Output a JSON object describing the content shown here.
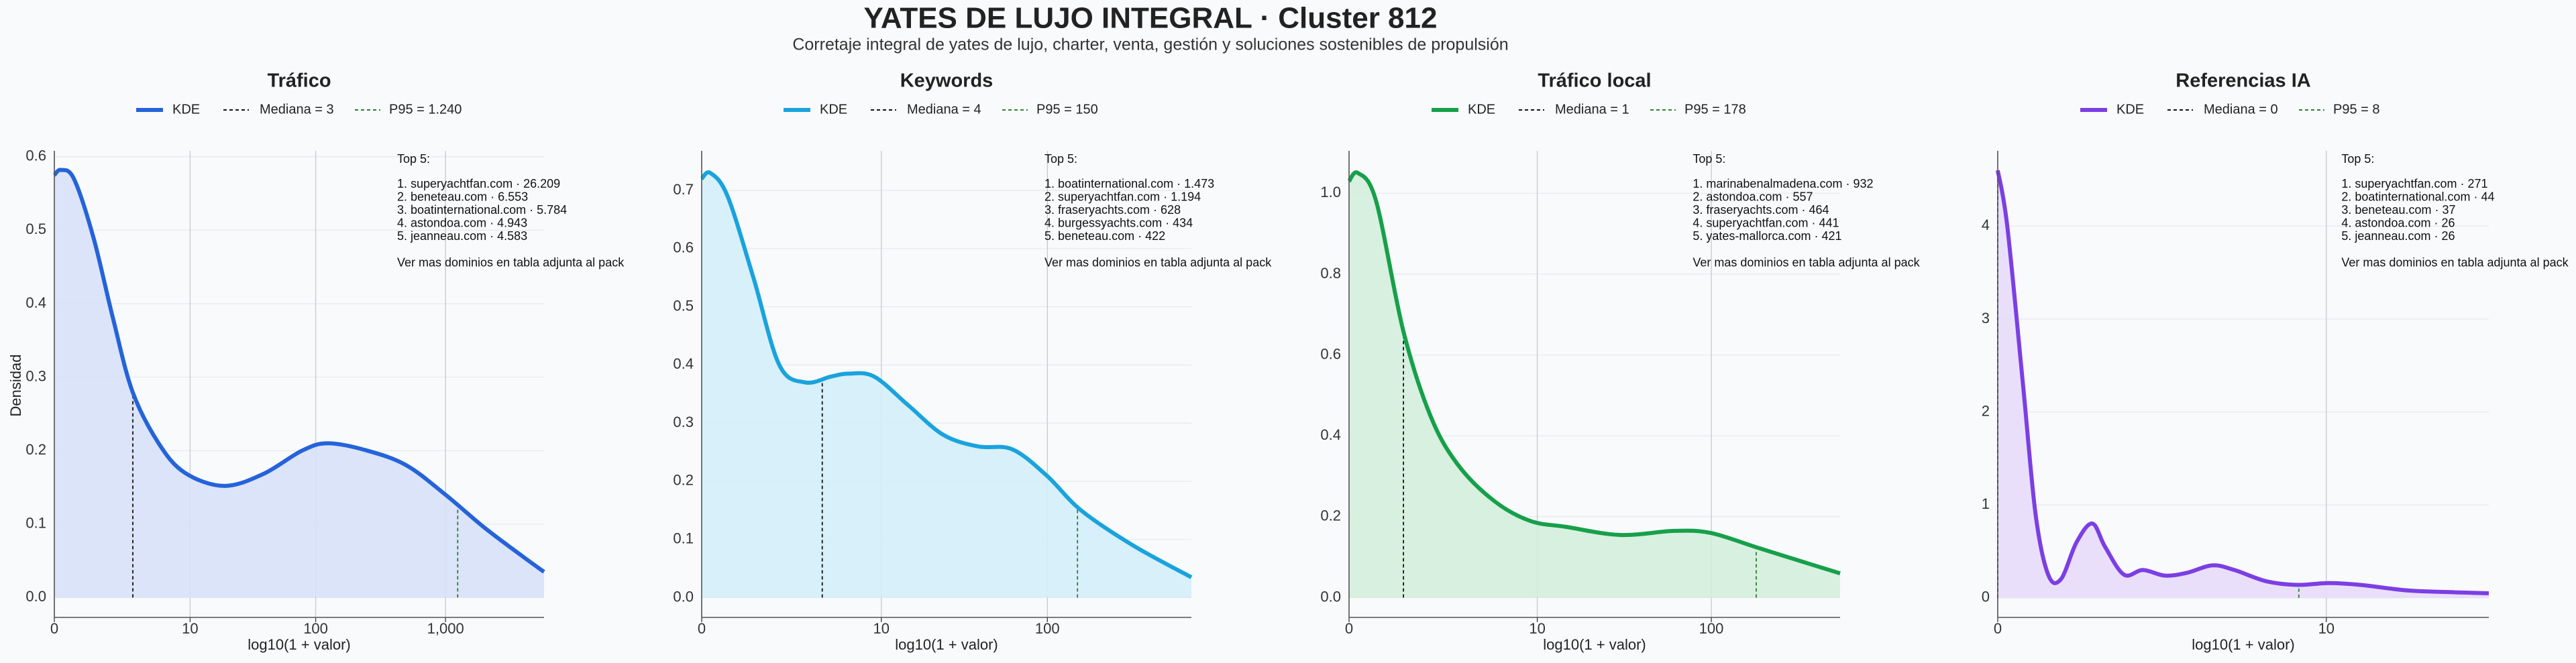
{
  "title": "YATES DE LUJO INTEGRAL · Cluster 812",
  "subtitle": "Corretaje integral de yates de lujo, charter, venta, gestión y soluciones sostenibles de propulsión",
  "chart_data": [
    {
      "type": "area",
      "title": "Tráfico",
      "x_label": "log10(1 + valor)",
      "y_label": "Densidad",
      "xscale": "log1p",
      "grid": true,
      "x": [
        0,
        0.122,
        0.413,
        0.995,
        1.818,
        2.981,
        5.31,
        9,
        18.95,
        38.81,
        78.43,
        124.9,
        250.2,
        500.2,
        999,
        1994,
        3980,
        5700
      ],
      "series": [
        {
          "name": "KDE",
          "color": "#2563d9",
          "fill": "#d7e1f8",
          "values": [
            0.575,
            0.582,
            0.57,
            0.49,
            0.38,
            0.28,
            0.21,
            0.17,
            0.152,
            0.168,
            0.2,
            0.21,
            0.2,
            0.18,
            0.14,
            0.095,
            0.055,
            0.035
          ]
        }
      ],
      "reference_lines": [
        {
          "name": "Mediana = 3",
          "value": 3,
          "color": "#111111"
        },
        {
          "name": "P95 = 1.240",
          "value": 1240,
          "color": "#2e7d32"
        }
      ],
      "xlim": [
        0,
        5700
      ],
      "ylim": [
        -0.027,
        0.608
      ],
      "xticks": [
        0,
        10,
        100,
        {
          "value": 1000,
          "label": "1,000"
        }
      ],
      "yticks": [
        {
          "value": 0,
          "label": "0.0"
        },
        0.1,
        0.2,
        0.3,
        0.4,
        0.5,
        0.6
      ],
      "annotation": [
        "Top 5:",
        "1. superyachtfan.com · 26.209",
        "2. beneteau.com · 6.553",
        "3. boatinternational.com · 5.784",
        "4. astondoa.com · 4.943",
        "5. jeanneau.com · 4.583",
        "Ver mas dominios en tabla adjunta al pack"
      ]
    },
    {
      "type": "area",
      "title": "Keywords",
      "x_label": "log10(1 + valor)",
      "xscale": "log1p",
      "grid": true,
      "x": [
        0,
        0.122,
        0.413,
        0.995,
        1.818,
        2.981,
        4.623,
        6.079,
        9,
        14.85,
        24.12,
        38.81,
        62.1,
        99,
        157.5,
        315.2,
        690
      ],
      "series": [
        {
          "name": "KDE",
          "color": "#1aa3dc",
          "fill": "#d3eefa",
          "values": [
            0.72,
            0.73,
            0.69,
            0.55,
            0.4,
            0.37,
            0.38,
            0.385,
            0.38,
            0.33,
            0.28,
            0.26,
            0.255,
            0.21,
            0.15,
            0.09,
            0.035
          ]
        }
      ],
      "reference_lines": [
        {
          "name": "Mediana = 4",
          "value": 4,
          "color": "#111111"
        },
        {
          "name": "P95 = 150",
          "value": 150,
          "color": "#2e7d32"
        }
      ],
      "xlim": [
        0,
        690
      ],
      "ylim": [
        -0.034,
        0.768
      ],
      "xticks": [
        0,
        10,
        100
      ],
      "yticks": [
        {
          "value": 0,
          "label": "0.0"
        },
        0.1,
        0.2,
        0.3,
        0.4,
        0.5,
        0.6,
        0.7
      ],
      "annotation": [
        "Top 5:",
        "1. boatinternational.com · 1.473",
        "2. superyachtfan.com · 1.194",
        "3. fraseryachts.com · 628",
        "4. burgessyachts.com · 434",
        "5. beneteau.com · 422",
        "Ver mas dominios en tabla adjunta al pack"
      ]
    },
    {
      "type": "area",
      "title": "Tráfico local",
      "x_label": "log10(1 + valor)",
      "xscale": "log1p",
      "grid": true,
      "x": [
        0,
        0.122,
        0.413,
        0.995,
        1.818,
        2.981,
        5.31,
        9,
        14.85,
        30.62,
        62.1,
        99,
        176.8,
        315.2,
        520
      ],
      "series": [
        {
          "name": "KDE",
          "color": "#16a04a",
          "fill": "#d3eedb",
          "values": [
            1.03,
            1.05,
            0.98,
            0.66,
            0.45,
            0.33,
            0.24,
            0.19,
            0.175,
            0.155,
            0.165,
            0.16,
            0.125,
            0.09,
            0.06
          ]
        }
      ],
      "reference_lines": [
        {
          "name": "Mediana = 1",
          "value": 1,
          "color": "#111111"
        },
        {
          "name": "P95 = 178",
          "value": 178,
          "color": "#2e7d32"
        }
      ],
      "xlim": [
        0,
        520
      ],
      "ylim": [
        -0.049,
        1.105
      ],
      "xticks": [
        0,
        10,
        100
      ],
      "yticks": [
        {
          "value": 0,
          "label": "0.0"
        },
        {
          "value": 0.2,
          "label": "0.2"
        },
        {
          "value": 0.4,
          "label": "0.4"
        },
        {
          "value": 0.6,
          "label": "0.6"
        },
        {
          "value": 0.8,
          "label": "0.8"
        },
        {
          "value": 1,
          "label": "1.0"
        }
      ],
      "annotation": [
        "Top 5:",
        "1. marinabenalmadena.com · 932",
        "2. astondoa.com · 557",
        "3. fraseryachts.com · 464",
        "4. superyachtfan.com · 441",
        "5. yates-mallorca.com · 421",
        "Ver mas dominios en tabla adjunta al pack"
      ]
    },
    {
      "type": "area",
      "title": "Referencias IA",
      "x_label": "log10(1 + valor)",
      "xscale": "log1p",
      "grid": true,
      "x": [
        0,
        0.072,
        0.202,
        0.318,
        0.445,
        0.585,
        0.778,
        0.995,
        1.188,
        1.512,
        1.884,
        2.388,
        2.981,
        3.786,
        4.623,
        6.079,
        7.913,
        10.22,
        13.13,
        18.95,
        27.18,
        35
      ],
      "series": [
        {
          "name": "KDE",
          "color": "#7b3fe4",
          "fill": "#e8dcf9",
          "values": [
            4.6,
            4.0,
            2.3,
            0.9,
            0.25,
            0.2,
            0.6,
            0.8,
            0.55,
            0.25,
            0.3,
            0.24,
            0.27,
            0.35,
            0.3,
            0.18,
            0.14,
            0.16,
            0.14,
            0.08,
            0.06,
            0.05
          ]
        }
      ],
      "reference_lines": [
        {
          "name": "Mediana = 0",
          "value": 0,
          "color": "#111111"
        },
        {
          "name": "P95 = 8",
          "value": 8,
          "color": "#2e7d32"
        }
      ],
      "xlim": [
        0,
        35
      ],
      "ylim": [
        -0.21,
        4.81
      ],
      "xticks": [
        0,
        10
      ],
      "yticks": [
        0,
        1,
        2,
        3,
        4
      ],
      "annotation": [
        "Top 5:",
        "1. superyachtfan.com · 271",
        "2. boatinternational.com · 44",
        "3. beneteau.com · 37",
        "4. astondoa.com · 26",
        "5. jeanneau.com · 26",
        "Ver mas dominios en tabla adjunta al pack"
      ]
    }
  ]
}
